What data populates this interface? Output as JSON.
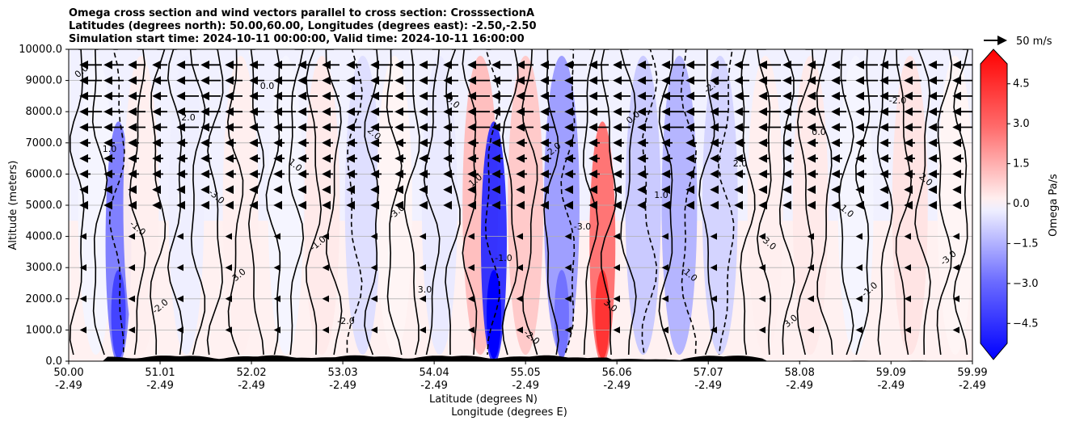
{
  "titles": [
    "Omega cross section and wind vectors parallel to cross section: CrosssectionA",
    "Latitudes (degrees north): 50.00,60.00, Longitudes (degrees east): -2.50,-2.50",
    "Simulation start time: 2024-10-11 00:00:00, Valid time: 2024-10-11 16:00:00"
  ],
  "chart_data": {
    "type": "heatmap",
    "description_type": "filled contour cross section with wind vectors",
    "ylabel": "Altitude (meters)",
    "xlabel_lines": [
      "Latitude (degrees N)",
      "Longitude (degrees E)"
    ],
    "ylim": [
      0,
      10000
    ],
    "yticks": [
      "0.0",
      "1000.0",
      "2000.0",
      "3000.0",
      "4000.0",
      "5000.0",
      "6000.0",
      "7000.0",
      "8000.0",
      "9000.0",
      "10000.0"
    ],
    "xticks": [
      {
        "lat": "50.00",
        "lon": "-2.49"
      },
      {
        "lat": "51.01",
        "lon": "-2.49"
      },
      {
        "lat": "52.02",
        "lon": "-2.49"
      },
      {
        "lat": "53.03",
        "lon": "-2.49"
      },
      {
        "lat": "54.04",
        "lon": "-2.49"
      },
      {
        "lat": "55.05",
        "lon": "-2.49"
      },
      {
        "lat": "56.06",
        "lon": "-2.49"
      },
      {
        "lat": "57.07",
        "lon": "-2.49"
      },
      {
        "lat": "58.08",
        "lon": "-2.49"
      },
      {
        "lat": "59.09",
        "lon": "-2.49"
      },
      {
        "lat": "59.99",
        "lon": "-2.49"
      }
    ],
    "grid": "horizontal",
    "colorbar": {
      "label": "Omega Pa/s",
      "range": [
        -5.25,
        5.25
      ],
      "ticks": [
        "4.5",
        "3.0",
        "1.5",
        "0.0",
        "−1.5",
        "−3.0",
        "−4.5"
      ],
      "tick_values": [
        4.5,
        3.0,
        1.5,
        0.0,
        -1.5,
        -3.0,
        -4.5
      ],
      "colors": {
        "negative": "#0000ff",
        "positive": "#ff0000",
        "neutral": "#ffffff"
      },
      "extend": "both"
    },
    "quiver_key": {
      "label": "50 m/s",
      "speed": 50
    },
    "bands": [
      {
        "lat": 50.3,
        "omega": -0.2
      },
      {
        "lat": 50.55,
        "omega": -2.4
      },
      {
        "lat": 50.8,
        "omega": 0.3
      },
      {
        "lat": 51.3,
        "omega": -0.3
      },
      {
        "lat": 51.9,
        "omega": 0.3
      },
      {
        "lat": 52.4,
        "omega": -0.2
      },
      {
        "lat": 52.8,
        "omega": 0.4
      },
      {
        "lat": 53.25,
        "omega": -0.6
      },
      {
        "lat": 53.6,
        "omega": 0.2
      },
      {
        "lat": 54.1,
        "omega": -0.4
      },
      {
        "lat": 54.55,
        "omega": 1.2
      },
      {
        "lat": 54.7,
        "omega": -3.8
      },
      {
        "lat": 55.05,
        "omega": 1.0
      },
      {
        "lat": 55.45,
        "omega": -1.8
      },
      {
        "lat": 55.9,
        "omega": 2.6
      },
      {
        "lat": 56.35,
        "omega": -1.0
      },
      {
        "lat": 56.75,
        "omega": -1.4
      },
      {
        "lat": 57.2,
        "omega": -0.8
      },
      {
        "lat": 57.7,
        "omega": 0.3
      },
      {
        "lat": 58.2,
        "omega": 0.4
      },
      {
        "lat": 58.7,
        "omega": -0.2
      },
      {
        "lat": 59.3,
        "omega": 0.5
      },
      {
        "lat": 59.8,
        "omega": 0.2
      }
    ],
    "contour_labels": [
      "0.0",
      "1.0",
      "-1.0",
      "-2.0",
      "2.0",
      "-3.0",
      "3.0"
    ],
    "wind_rows_m": [
      5000,
      5500,
      6000,
      6500,
      7000,
      7500,
      8000,
      8500,
      9000,
      9500
    ]
  }
}
